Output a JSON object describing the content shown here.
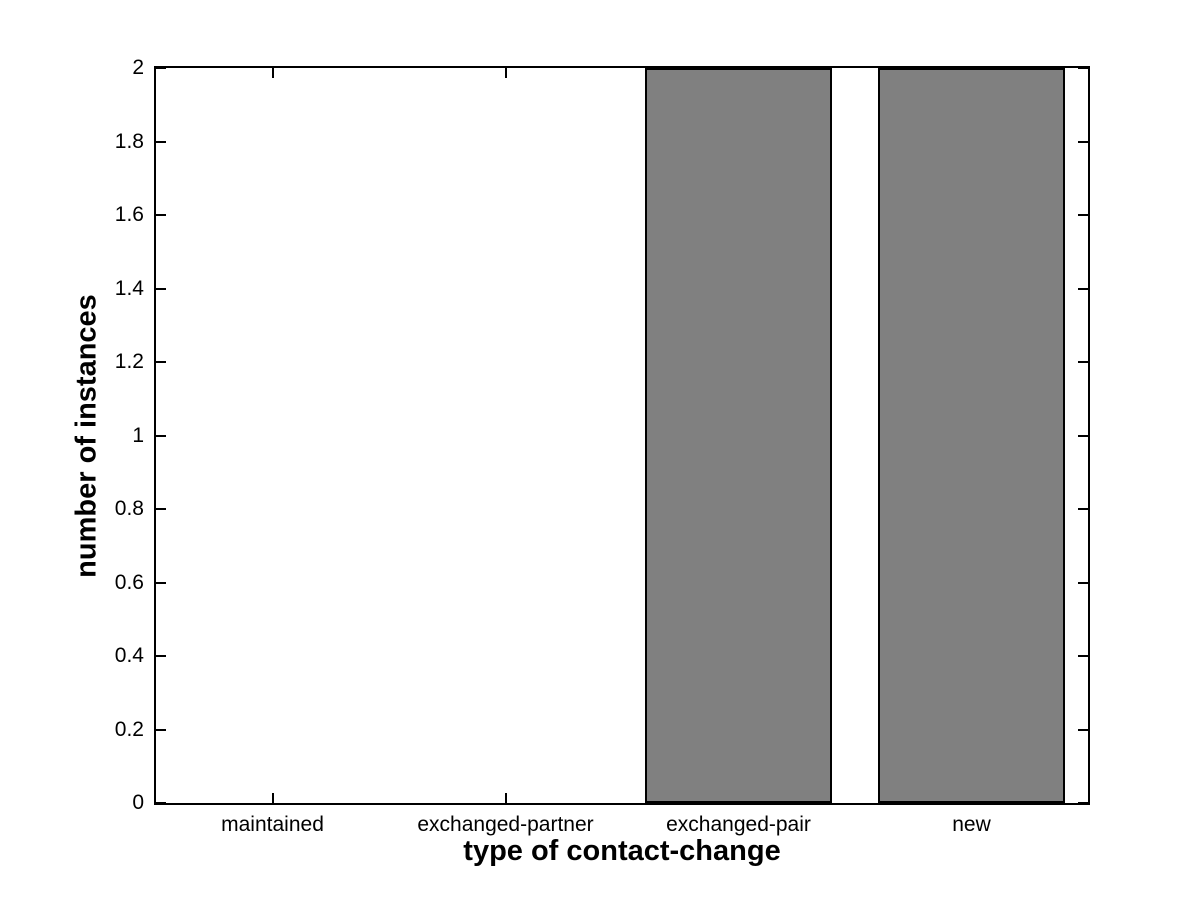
{
  "figure": {
    "background_color": "#ffffff",
    "axis_color": "#000000",
    "box": true
  },
  "chart_data": {
    "type": "bar",
    "title": "",
    "xlabel": "type of contact-change",
    "ylabel": "number of instances",
    "categories": [
      "maintained",
      "exchanged-partner",
      "exchanged-pair",
      "new"
    ],
    "values": [
      0,
      0,
      2,
      2
    ],
    "ylim": [
      0,
      2
    ],
    "yticks": [
      0,
      0.2,
      0.4,
      0.6,
      0.8,
      1,
      1.2,
      1.4,
      1.6,
      1.8,
      2
    ],
    "ytick_labels": [
      "0",
      "0.2",
      "0.4",
      "0.6",
      "0.8",
      "1",
      "1.2",
      "1.4",
      "1.6",
      "1.8",
      "2"
    ],
    "grid": false,
    "legend": false,
    "bar_color": "#808080",
    "bar_edge_color": "#000000",
    "bar_width_fraction": 0.8
  }
}
